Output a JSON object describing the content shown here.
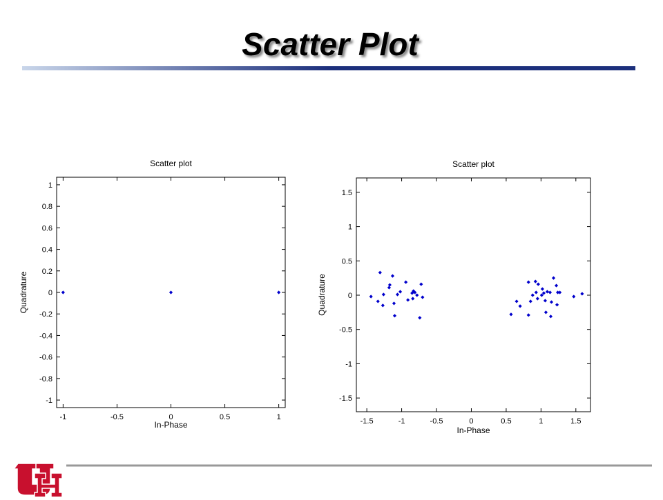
{
  "title": "Scatter Plot",
  "chart_data": [
    {
      "type": "scatter",
      "title": "Scatter plot",
      "x_label": "In-Phase",
      "y_label": "Quadrature",
      "color": "#0000cc",
      "xlim": [
        -1.06,
        1.06
      ],
      "ylim": [
        -1.07,
        1.07
      ],
      "xticks": [
        -1,
        -0.5,
        0,
        0.5,
        1
      ],
      "yticks": [
        -1,
        -0.8,
        -0.6,
        -0.4,
        -0.2,
        0,
        0.2,
        0.4,
        0.6,
        0.8,
        1
      ],
      "x": [
        -1,
        0,
        1
      ],
      "values": [
        0,
        0,
        0
      ]
    },
    {
      "type": "scatter",
      "title": "Scatter plot",
      "x_label": "In-Phase",
      "y_label": "Quadrature",
      "color": "#0000cc",
      "xlim": [
        -1.65,
        1.71
      ],
      "ylim": [
        -1.7,
        1.71
      ],
      "xticks": [
        -1.5,
        -1,
        -0.5,
        0,
        0.5,
        1,
        1.5
      ],
      "yticks": [
        -1.5,
        -1,
        -0.5,
        0,
        0.5,
        1,
        1.5
      ],
      "x": [
        -1.31,
        -1.44,
        -1.34,
        -1.26,
        -1.27,
        -1.17,
        -1.18,
        -1.13,
        -1.11,
        -1.1,
        -1.06,
        -1.02,
        -0.94,
        -0.91,
        -0.85,
        -0.83,
        -0.81,
        -0.84,
        -0.78,
        -0.72,
        -0.7,
        -0.74,
        0.57,
        0.65,
        0.7,
        0.82,
        0.82,
        0.85,
        0.88,
        0.92,
        0.93,
        0.95,
        0.96,
        1.01,
        1.02,
        1.04,
        1.06,
        1.07,
        1.09,
        1.13,
        1.14,
        1.15,
        1.18,
        1.22,
        1.23,
        1.24,
        1.27,
        1.47,
        1.59
      ],
      "values": [
        0.33,
        -0.02,
        -0.09,
        0.01,
        -0.15,
        0.15,
        0.11,
        0.28,
        -0.12,
        -0.3,
        0.01,
        0.05,
        0.19,
        -0.07,
        0.03,
        0.06,
        0.04,
        -0.05,
        0,
        0.16,
        -0.03,
        -0.33,
        -0.28,
        -0.09,
        -0.16,
        0.19,
        -0.29,
        -0.09,
        0,
        0.2,
        0.04,
        -0.05,
        0.16,
        0,
        0.09,
        0.03,
        -0.08,
        -0.25,
        0.05,
        0.04,
        -0.31,
        -0.1,
        0.25,
        0.14,
        -0.14,
        0.04,
        0.04,
        -0.02,
        0.02
      ]
    }
  ]
}
